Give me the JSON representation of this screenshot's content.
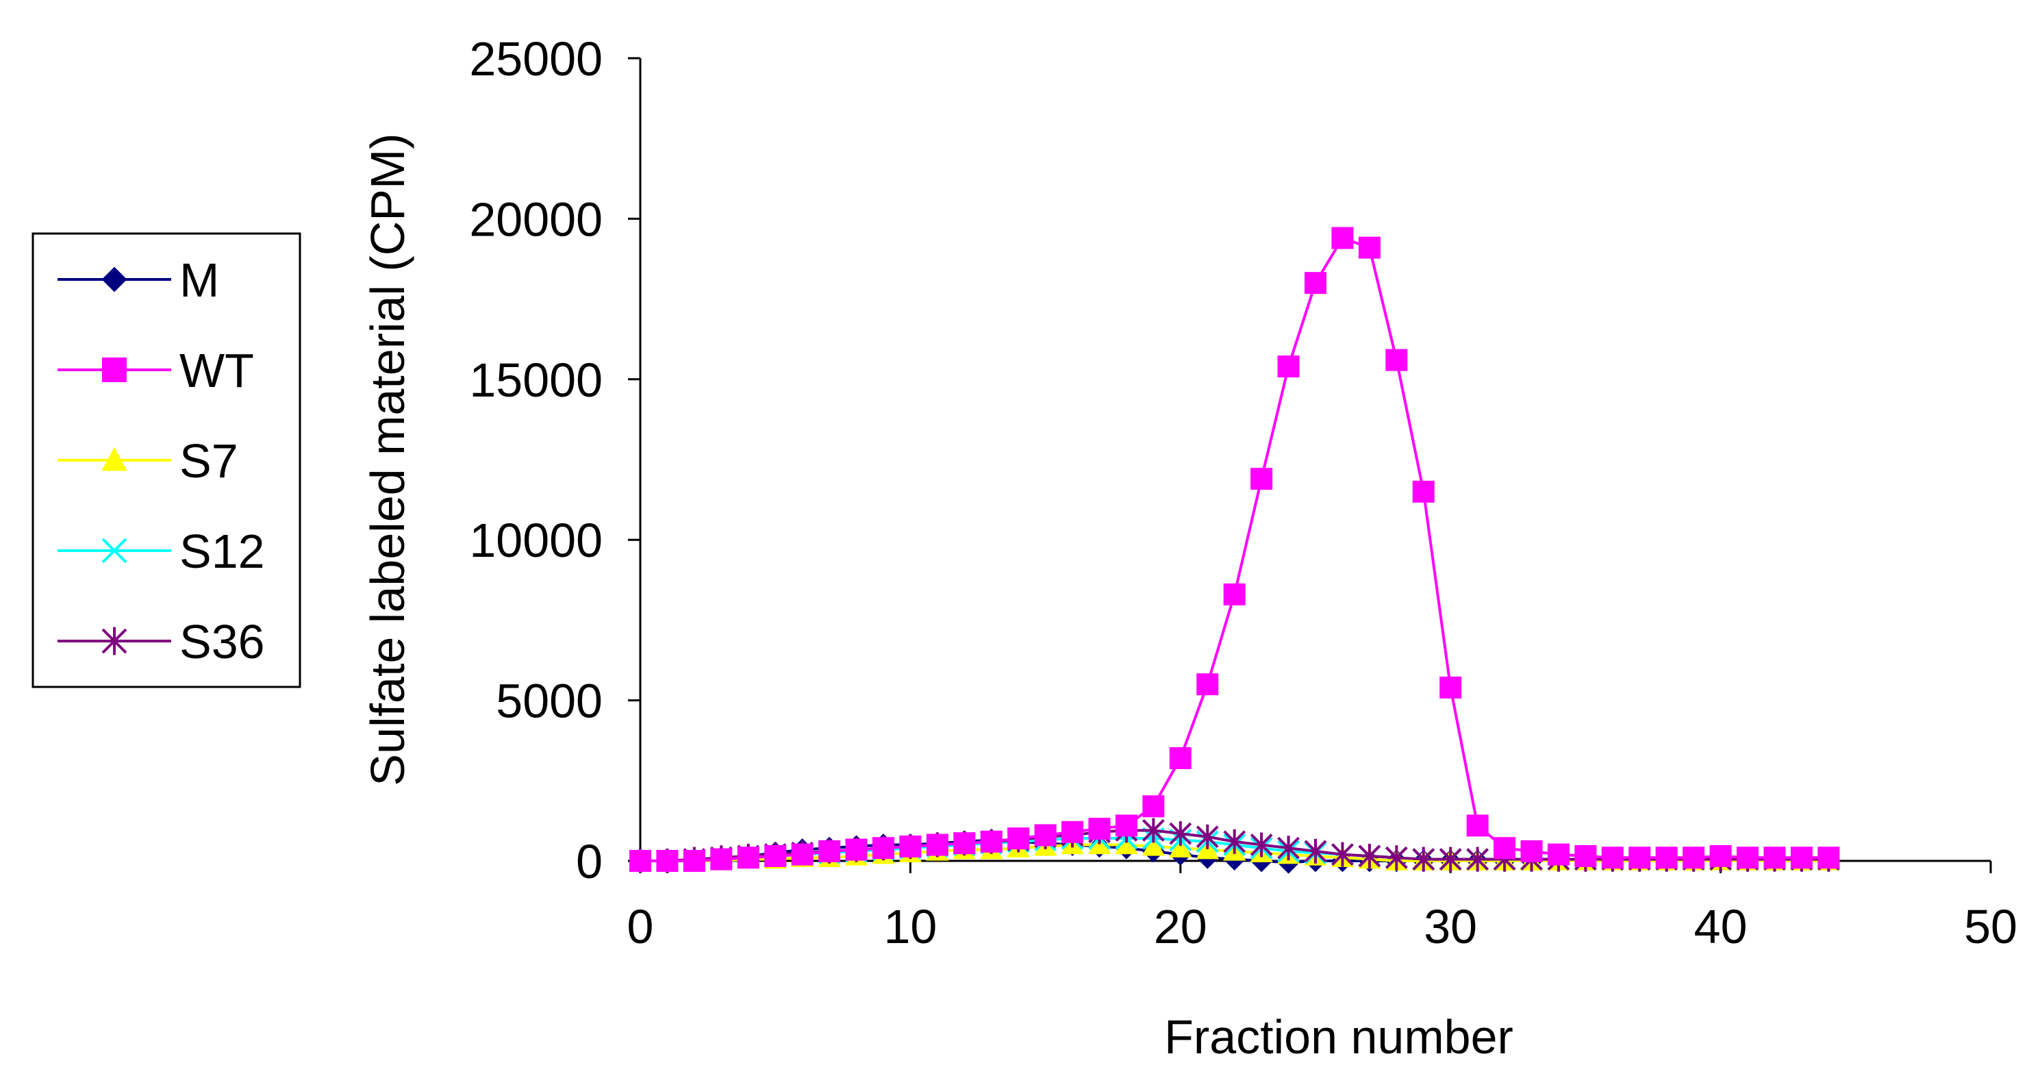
{
  "chart_data": {
    "type": "line",
    "xlabel": "Fraction number",
    "ylabel": "Sulfate labeled material (CPM)",
    "xlim": [
      0,
      50
    ],
    "ylim": [
      0,
      25000
    ],
    "x_ticks": [
      "0",
      "10",
      "20",
      "30",
      "40",
      "50"
    ],
    "y_ticks": [
      "0",
      "5000",
      "10000",
      "15000",
      "20000",
      "25000"
    ],
    "grid": false,
    "legend_position": "left",
    "x": [
      0,
      1,
      2,
      3,
      4,
      5,
      6,
      7,
      8,
      9,
      10,
      11,
      12,
      13,
      14,
      15,
      16,
      17,
      18,
      19,
      20,
      21,
      22,
      23,
      24,
      25,
      26,
      27,
      28,
      29,
      30,
      31,
      32,
      33,
      34,
      35,
      36,
      37,
      38,
      39,
      40,
      41,
      42,
      43,
      44
    ],
    "series": [
      {
        "name": "M",
        "color": "#000080",
        "marker": "diamond",
        "values": [
          0,
          0,
          0,
          100,
          150,
          250,
          350,
          400,
          450,
          500,
          500,
          550,
          600,
          650,
          600,
          550,
          500,
          450,
          400,
          300,
          200,
          100,
          50,
          0,
          -50,
          0,
          0,
          0,
          0,
          0,
          0,
          0,
          0,
          0,
          0,
          0,
          0,
          0,
          0,
          0,
          0,
          0,
          0,
          0,
          0
        ]
      },
      {
        "name": "WT",
        "color": "#ff00ff",
        "marker": "square",
        "values": [
          0,
          0,
          0,
          50,
          100,
          150,
          200,
          300,
          350,
          400,
          450,
          500,
          550,
          600,
          700,
          800,
          900,
          1000,
          1100,
          1700,
          3200,
          5500,
          8300,
          11900,
          15400,
          18000,
          19400,
          19100,
          15600,
          11500,
          5400,
          1100,
          400,
          300,
          200,
          150,
          100,
          100,
          100,
          100,
          150,
          100,
          100,
          100,
          100
        ]
      },
      {
        "name": "S7",
        "color": "#ffff00",
        "marker": "triangle",
        "values": [
          0,
          0,
          0,
          0,
          50,
          50,
          100,
          100,
          150,
          200,
          250,
          300,
          350,
          350,
          400,
          450,
          500,
          500,
          500,
          450,
          400,
          350,
          300,
          250,
          200,
          150,
          100,
          50,
          0,
          0,
          0,
          0,
          0,
          0,
          0,
          0,
          0,
          0,
          0,
          0,
          0,
          0,
          0,
          0,
          0
        ]
      },
      {
        "name": "S12",
        "color": "#00ffff",
        "marker": "x",
        "values": [
          0,
          0,
          0,
          50,
          100,
          150,
          200,
          250,
          300,
          350,
          400,
          450,
          500,
          550,
          600,
          650,
          700,
          700,
          700,
          700,
          650,
          600,
          500,
          400,
          300,
          250,
          200,
          150,
          100,
          50,
          50,
          50,
          50,
          50,
          50,
          50,
          50,
          50,
          50,
          50,
          50,
          50,
          50,
          50,
          50
        ]
      },
      {
        "name": "S36",
        "color": "#800080",
        "marker": "star",
        "values": [
          0,
          0,
          50,
          100,
          150,
          200,
          250,
          300,
          350,
          400,
          450,
          500,
          550,
          600,
          650,
          750,
          800,
          900,
          950,
          950,
          850,
          750,
          600,
          500,
          400,
          300,
          200,
          150,
          100,
          50,
          50,
          50,
          50,
          50,
          50,
          50,
          50,
          50,
          50,
          50,
          50,
          50,
          50,
          50,
          50
        ]
      }
    ]
  }
}
